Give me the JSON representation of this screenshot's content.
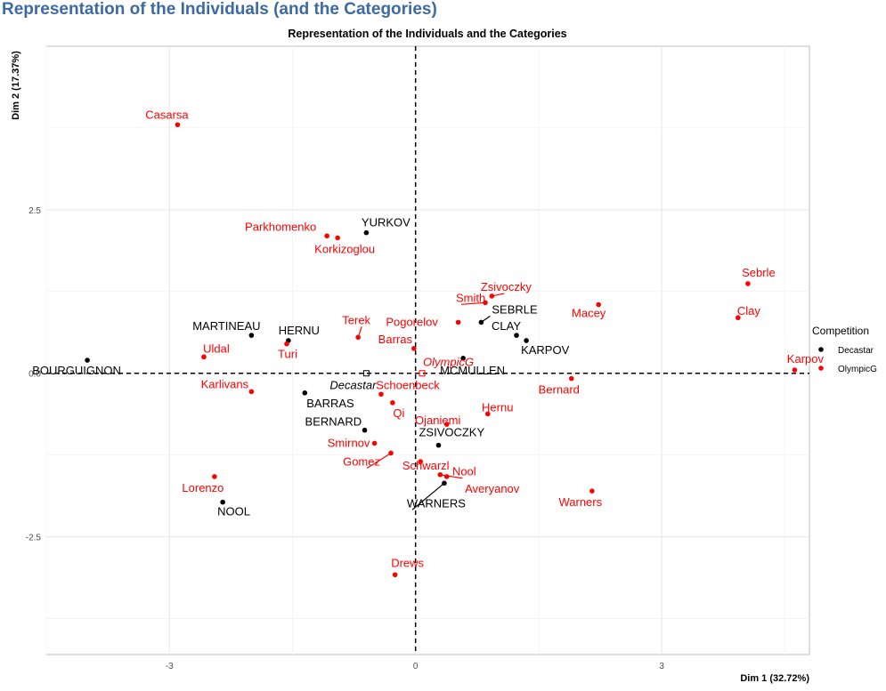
{
  "page": {
    "heading": "Representation of the Individuals (and the Categories)"
  },
  "chart_data": {
    "type": "scatter",
    "title": "Representation of the Individuals and the Categories",
    "xlabel": "Dim 1 (32.72%)",
    "ylabel": "Dim 2 (17.37%)",
    "xlim": [
      -4.5,
      4.8
    ],
    "ylim": [
      -4.3,
      5.0
    ],
    "x_ticks": [
      {
        "value": -3,
        "label": "-3"
      },
      {
        "value": 0,
        "label": "0"
      },
      {
        "value": 3,
        "label": "3"
      }
    ],
    "y_ticks": [
      {
        "value": -2.5,
        "label": "-2.5"
      },
      {
        "value": 0,
        "label": "0.0"
      },
      {
        "value": 2.5,
        "label": "2.5"
      }
    ],
    "grid": true,
    "reference_lines": {
      "x": 0,
      "y": 0,
      "style": "dashed"
    },
    "legend": {
      "title": "Competition",
      "placement": "right",
      "entries": [
        {
          "name": "Decastar",
          "color": "#000000"
        },
        {
          "name": "OlympicG",
          "color": "#ff0000"
        }
      ]
    },
    "series": [
      {
        "name": "Decastar",
        "color": "#000000",
        "points": [
          {
            "label": "YURKOV",
            "x": -0.6,
            "y": 2.15
          },
          {
            "label": "MARTINEAU",
            "x": -2.0,
            "y": 0.58
          },
          {
            "label": "HERNU",
            "x": -1.55,
            "y": 0.5
          },
          {
            "label": "SEBRLE",
            "x": 0.8,
            "y": 0.78
          },
          {
            "label": "CLAY",
            "x": 1.23,
            "y": 0.58
          },
          {
            "label": "KARPOV",
            "x": 1.35,
            "y": 0.5
          },
          {
            "label": "BOURGUIGNON",
            "x": -4.0,
            "y": 0.2
          },
          {
            "label": "MCMULLEN",
            "x": 0.58,
            "y": 0.23
          },
          {
            "label": "BARRAS",
            "x": -1.35,
            "y": -0.3
          },
          {
            "label": "BERNARD",
            "x": -0.62,
            "y": -0.87
          },
          {
            "label": "ZSIVOCZKY",
            "x": 0.28,
            "y": -1.1
          },
          {
            "label": "WARNERS",
            "x": 0.35,
            "y": -1.68
          },
          {
            "label": "NOOL",
            "x": -2.35,
            "y": -1.97
          }
        ]
      },
      {
        "name": "OlympicG",
        "color": "#ff0000",
        "points": [
          {
            "label": "Casarsa",
            "x": -2.9,
            "y": 3.8
          },
          {
            "label": "Parkhomenko",
            "x": -1.08,
            "y": 2.1
          },
          {
            "label": "Korkizoglou",
            "x": -0.95,
            "y": 2.07
          },
          {
            "label": "Sebrle",
            "x": 4.05,
            "y": 1.37
          },
          {
            "label": "Zsivoczky",
            "x": 0.93,
            "y": 1.18
          },
          {
            "label": "Smith",
            "x": 0.85,
            "y": 1.08
          },
          {
            "label": "Macey",
            "x": 2.23,
            "y": 1.05
          },
          {
            "label": "Clay",
            "x": 3.93,
            "y": 0.85
          },
          {
            "label": "Terek",
            "x": -0.7,
            "y": 0.55
          },
          {
            "label": "Pogorelov",
            "x": 0.52,
            "y": 0.78
          },
          {
            "label": "Barras",
            "x": -0.02,
            "y": 0.38
          },
          {
            "label": "Uldal",
            "x": -2.58,
            "y": 0.25
          },
          {
            "label": "Turi",
            "x": -1.57,
            "y": 0.45
          },
          {
            "label": "Karpov",
            "x": 4.62,
            "y": 0.05
          },
          {
            "label": "Bernard",
            "x": 1.9,
            "y": -0.08
          },
          {
            "label": "Karlivans",
            "x": -2.0,
            "y": -0.28
          },
          {
            "label": "Schoenbeck",
            "x": -0.42,
            "y": -0.32
          },
          {
            "label": "Qi",
            "x": -0.28,
            "y": -0.45
          },
          {
            "label": "Hernu",
            "x": 0.88,
            "y": -0.62
          },
          {
            "label": "Ojaniemi",
            "x": 0.38,
            "y": -0.78
          },
          {
            "label": "Smirnov",
            "x": -0.5,
            "y": -1.07
          },
          {
            "label": "Schwarzl",
            "x": 0.06,
            "y": -1.35
          },
          {
            "label": "Gomez",
            "x": -0.3,
            "y": -1.22
          },
          {
            "label": "Nool",
            "x": 0.3,
            "y": -1.55
          },
          {
            "label": "Averyanov",
            "x": 0.38,
            "y": -1.58
          },
          {
            "label": "Lorenzo",
            "x": -2.45,
            "y": -1.58
          },
          {
            "label": "Warners",
            "x": 2.15,
            "y": -1.8
          },
          {
            "label": "Drews",
            "x": -0.25,
            "y": -3.08
          }
        ]
      }
    ],
    "categories": [
      {
        "label": "Decastar",
        "x": -0.6,
        "y": 0.0,
        "color": "#000000"
      },
      {
        "label": "OlympicG",
        "x": 0.08,
        "y": 0.0,
        "color": "#ff0000"
      }
    ]
  }
}
